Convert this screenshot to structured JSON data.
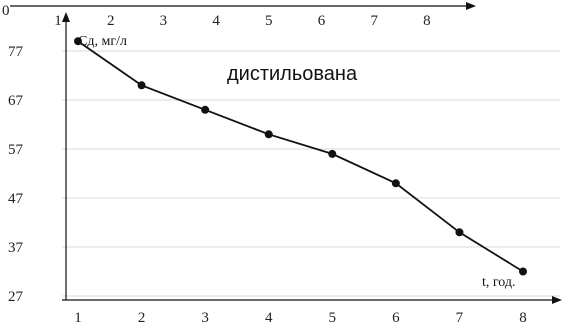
{
  "chart_data": {
    "type": "line",
    "title": "",
    "ylabel": "Сд, мг/л",
    "xlabel": "t, год.",
    "annotation": "дистильована",
    "x": [
      1,
      2,
      3,
      4,
      5,
      6,
      7,
      8
    ],
    "series": [
      {
        "values": [
          79,
          70,
          65,
          60,
          56,
          50,
          40,
          32
        ]
      }
    ],
    "y_ticks": [
      27,
      37,
      47,
      57,
      67,
      77
    ],
    "x_ticks_bottom": [
      1,
      2,
      3,
      4,
      5,
      6,
      7,
      8
    ],
    "x_ticks_top": [
      1,
      2,
      3,
      4,
      5,
      6,
      7,
      8
    ],
    "top_axis_label": "0",
    "ylim": [
      25,
      81
    ],
    "xlim": [
      1,
      8
    ],
    "grid": "horizontal",
    "colors": {
      "line": "#111111",
      "grid": "#d9d9d9",
      "axis": "#111111"
    }
  }
}
